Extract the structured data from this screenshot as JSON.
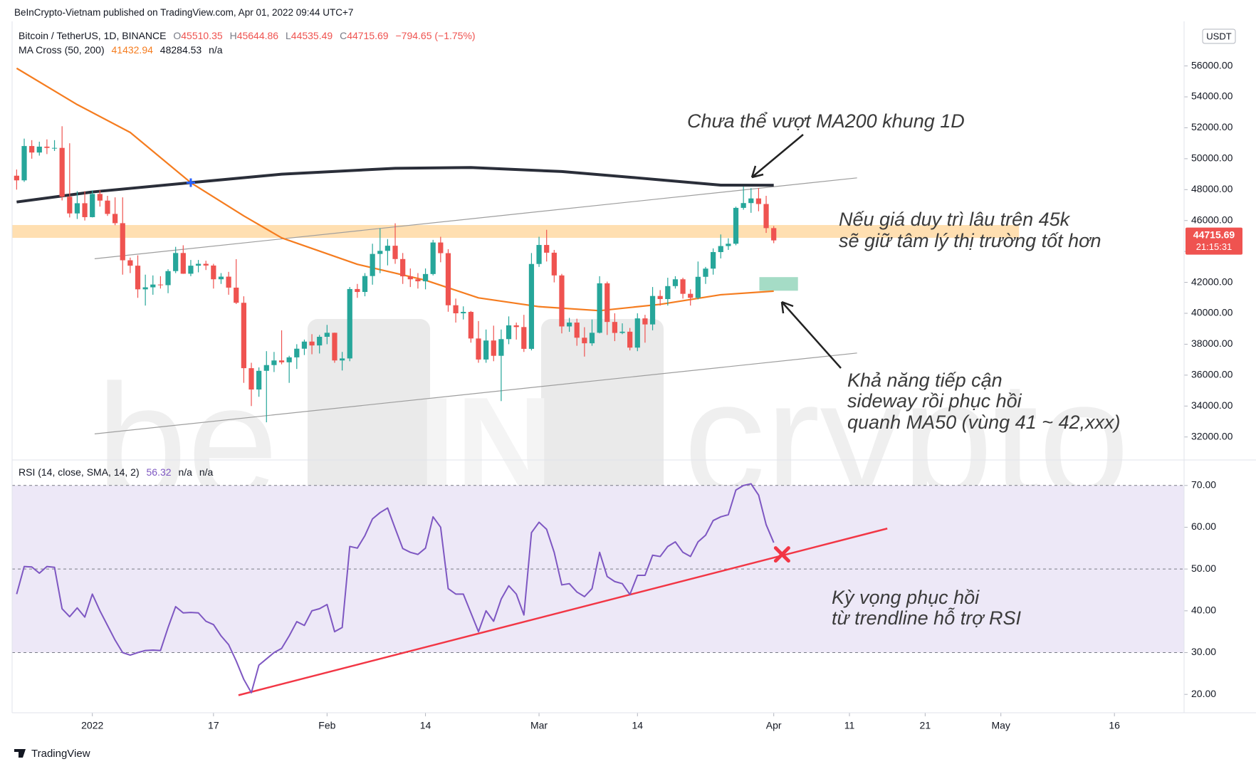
{
  "header": {
    "published": "BeInCrypto-Vietnam published on TradingView.com, Apr 01, 2022 09:44 UTC+7",
    "footer": "TradingView",
    "watermark": [
      "be",
      "IN",
      "crypto"
    ]
  },
  "chart_data": [
    {
      "type": "candlestick",
      "title": "Bitcoin / TetherUS, 1D, BINANCE",
      "ohlc_labels": [
        "O",
        "H",
        "L",
        "C"
      ],
      "change": "−794.65 (−1.75%)",
      "indicator": "MA Cross (50, 200)",
      "na": "n/a",
      "currency": "USDT",
      "countdown": "21:15:31",
      "up_color": "#26a69a",
      "down_color": "#ef5350",
      "x": [
        -10,
        -9,
        -8,
        -7,
        -6,
        -5,
        -4,
        -3,
        -2,
        -1,
        0,
        1,
        2,
        3,
        4,
        5,
        6,
        7,
        8,
        9,
        10,
        11,
        12,
        13,
        14,
        15,
        16,
        17,
        18,
        19,
        20,
        21,
        22,
        23,
        24,
        25,
        26,
        27,
        28,
        29,
        30,
        31,
        32,
        33,
        34,
        35,
        36,
        37,
        38,
        39,
        40,
        41,
        42,
        43,
        44,
        45,
        46,
        47,
        48,
        49,
        50,
        51,
        52,
        53,
        54,
        55,
        56,
        57,
        58,
        59,
        60,
        61,
        62,
        63,
        64,
        65,
        66,
        67,
        68,
        69,
        70,
        71,
        72,
        73,
        74,
        75,
        76,
        77,
        78,
        79,
        80,
        81,
        82,
        83,
        84,
        85,
        86,
        87,
        88,
        89,
        90
      ],
      "open": [
        48900,
        48600,
        50820,
        50400,
        50780,
        50700,
        50700,
        47540,
        46460,
        47120,
        46220,
        47720,
        47290,
        46430,
        45830,
        43430,
        43080,
        41550,
        41680,
        41860,
        41820,
        42730,
        43900,
        42560,
        43080,
        43200,
        43090,
        42200,
        42370,
        41660,
        40680,
        36450,
        35070,
        36280,
        36650,
        36950,
        36830,
        37150,
        37710,
        38170,
        37920,
        38480,
        38740,
        36950,
        37080,
        41570,
        41380,
        42410,
        43840,
        44040,
        44370,
        43510,
        42390,
        42200,
        42070,
        42540,
        44580,
        43890,
        40520,
        40000,
        40090,
        38370,
        37010,
        38240,
        37250,
        38330,
        39220,
        39110,
        37700,
        43190,
        44420,
        43920,
        42450,
        39150,
        39400,
        38420,
        38060,
        38740,
        41940,
        39440,
        38730,
        38810,
        37780,
        39670,
        39280,
        41120,
        40920,
        41760,
        42200,
        41260,
        41000,
        42360,
        42890,
        43960,
        44350,
        44500,
        46820,
        47130,
        47430,
        47070,
        45510.35
      ],
      "high": [
        49300,
        51300,
        51200,
        51100,
        51250,
        51200,
        52100,
        51000,
        47900,
        47900,
        47950,
        47950,
        47600,
        47500,
        47500,
        43600,
        43750,
        42500,
        42450,
        42400,
        42850,
        44300,
        44400,
        43450,
        43450,
        43400,
        43200,
        42600,
        42680,
        43500,
        41100,
        36800,
        36500,
        37550,
        37500,
        38900,
        37250,
        38000,
        38300,
        38650,
        38600,
        39250,
        38750,
        37500,
        41700,
        41900,
        42600,
        44500,
        45500,
        44800,
        45820,
        43900,
        42900,
        42600,
        42900,
        44750,
        44950,
        44150,
        40950,
        40450,
        40150,
        39500,
        38950,
        39200,
        38950,
        39800,
        39400,
        39900,
        43900,
        44950,
        45400,
        44100,
        42550,
        39700,
        39650,
        39100,
        39600,
        42400,
        42050,
        40000,
        39350,
        39050,
        40000,
        39900,
        41700,
        41500,
        42300,
        42400,
        42300,
        41550,
        43350,
        43000,
        44200,
        45100,
        44850,
        46900,
        48190,
        48100,
        48100,
        47600,
        45644.86
      ],
      "low": [
        48000,
        48500,
        50000,
        50200,
        50300,
        50500,
        47300,
        46200,
        46100,
        46000,
        46200,
        46900,
        46300,
        45700,
        42500,
        42600,
        41000,
        40500,
        41200,
        41600,
        41300,
        42600,
        42550,
        42400,
        42650,
        42800,
        41600,
        41900,
        41200,
        40600,
        35500,
        34000,
        34600,
        32950,
        36200,
        36700,
        35500,
        36400,
        37300,
        37350,
        37400,
        38000,
        36800,
        36300,
        36900,
        41000,
        41100,
        41850,
        42600,
        43100,
        43200,
        41900,
        41700,
        41600,
        41550,
        42450,
        43300,
        40100,
        39400,
        39600,
        38100,
        36800,
        36800,
        36900,
        34320,
        38000,
        38300,
        37500,
        37600,
        43000,
        43350,
        42000,
        38700,
        38800,
        37900,
        37200,
        37900,
        38700,
        38600,
        38200,
        38650,
        37600,
        37550,
        38100,
        38900,
        40500,
        40500,
        41600,
        40950,
        40500,
        40900,
        41900,
        42500,
        43550,
        44100,
        44400,
        46700,
        46500,
        46600,
        45200,
        44535.49
      ],
      "close": [
        48600,
        50820,
        50400,
        50780,
        50700,
        50700,
        47540,
        46460,
        47120,
        46220,
        47720,
        47290,
        46430,
        45830,
        43430,
        43080,
        41550,
        41680,
        41860,
        41820,
        42730,
        43900,
        42560,
        43080,
        43200,
        43090,
        42200,
        42370,
        41660,
        40680,
        36450,
        35070,
        36280,
        36650,
        36950,
        36830,
        37150,
        37710,
        38170,
        37920,
        38480,
        38740,
        36950,
        37080,
        41570,
        41380,
        42410,
        43840,
        44040,
        44370,
        43510,
        42390,
        42200,
        42070,
        42540,
        44580,
        43890,
        40520,
        40000,
        40090,
        38370,
        37010,
        38240,
        37250,
        38330,
        39220,
        39110,
        37700,
        43190,
        44420,
        43920,
        42450,
        39150,
        39400,
        38420,
        38060,
        38740,
        41940,
        39440,
        38730,
        38810,
        37780,
        39670,
        39280,
        41120,
        40920,
        41760,
        42200,
        41260,
        41000,
        42360,
        42890,
        43960,
        44350,
        44500,
        46820,
        47130,
        47430,
        47070,
        45510,
        44715.69
      ],
      "lines": [
        {
          "color": "#f57c1f",
          "x": [
            -10,
            -2,
            5,
            13,
            20,
            25,
            35,
            44,
            51,
            59,
            67,
            75,
            83,
            90
          ],
          "values": [
            55850,
            53500,
            51700,
            48450,
            46300,
            44880,
            43170,
            42140,
            41000,
            40430,
            40170,
            40580,
            41200,
            41432.94
          ]
        },
        {
          "color": "#2a2e39",
          "x": [
            -10,
            0,
            13,
            25,
            40,
            50,
            62,
            72,
            83,
            90
          ],
          "values": [
            47200,
            47850,
            48450,
            49000,
            49380,
            49430,
            49170,
            48760,
            48290,
            48284.53
          ]
        }
      ],
      "cross_marker": {
        "x": 13,
        "value": 48450,
        "color": "#2962ff"
      },
      "trendlines": [
        {
          "x": [
            0.3,
            101
          ],
          "values": [
            43530,
            48760
          ]
        },
        {
          "x": [
            0.3,
            101
          ],
          "values": [
            32200,
            37430
          ]
        }
      ],
      "trendline_color": "#9e9e9e",
      "zone": {
        "x": [
          -10.6,
          122.4
        ],
        "values": [
          44880,
          45710
        ],
        "color": "#ffd9a3"
      },
      "box": {
        "x": [
          88.1,
          93.2
        ],
        "values": [
          41460,
          42340
        ],
        "color": "#a5dcc6"
      },
      "annotations": [
        [
          "Chưa thể vượt MA200 khung 1D"
        ],
        [
          "Nếu giá duy trì lâu trên 45k",
          "sẽ giữ tâm lý thị trường tốt hơn"
        ],
        [
          "Khả năng tiếp cận",
          "sideway rồi phục hồi",
          "quanh MA50 (vùng 41 ~ 42,xxx)"
        ]
      ],
      "xlim": [
        -10.6,
        144.2
      ],
      "ylim": [
        30650,
        58700
      ],
      "yticks": [
        {
          "value": 32000,
          "label": "32000.00"
        },
        {
          "value": 34000,
          "label": "34000.00"
        },
        {
          "value": 36000,
          "label": "36000.00"
        },
        {
          "value": 38000,
          "label": "38000.00"
        },
        {
          "value": 40000,
          "label": "40000.00"
        },
        {
          "value": 42000,
          "label": "42000.00"
        },
        {
          "value": 44000,
          "label": "44000.00"
        },
        {
          "value": 46000,
          "label": "46000.00"
        },
        {
          "value": 48000,
          "label": "48000.00"
        },
        {
          "value": 50000,
          "label": "50000.00"
        },
        {
          "value": 52000,
          "label": "52000.00"
        },
        {
          "value": 54000,
          "label": "54000.00"
        },
        {
          "value": 56000,
          "label": "56000.00"
        }
      ]
    },
    {
      "type": "line",
      "title": "RSI (14, close, SMA, 14, 2)",
      "na": [
        "n/a",
        "n/a"
      ],
      "color": "#7e57c2",
      "band_color": "#ede8f7",
      "values": [
        44,
        50.6,
        50.5,
        49,
        50.6,
        50.4,
        40.5,
        38.6,
        40.7,
        38.5,
        44,
        40,
        36.5,
        33,
        30,
        29.4,
        30,
        30.5,
        30.6,
        30.5,
        36,
        41,
        39.5,
        39.6,
        39.5,
        37.5,
        36.7,
        34,
        31.9,
        28,
        23.6,
        20.4,
        27,
        28.5,
        30,
        31,
        34,
        37.4,
        36.5,
        40,
        40.5,
        41.5,
        35,
        36,
        55.4,
        55,
        58,
        62,
        63.5,
        64.6,
        59.7,
        54.9,
        54,
        53.5,
        55,
        62.5,
        60,
        45.3,
        44,
        44,
        39.5,
        35,
        40,
        37.5,
        42.8,
        46,
        44,
        39,
        58.7,
        61.2,
        59.5,
        54,
        46.2,
        46.5,
        44.5,
        43.4,
        45.3,
        54,
        48.2,
        47,
        46.5,
        43.9,
        48.5,
        48.5,
        53.3,
        53,
        55.4,
        56.5,
        54,
        53,
        56.5,
        58.1,
        61.6,
        62.5,
        63,
        68.9,
        70,
        70.4,
        67.7,
        60.6,
        56.32
      ],
      "levels": [
        30,
        50,
        70
      ],
      "trendline": {
        "x": [
          19.3,
          105
        ],
        "values": [
          19.8,
          59.7
        ],
        "color": "#f23645"
      },
      "marker": {
        "x": 91.1,
        "value": 53.5
      },
      "annotations": [
        [
          "Kỳ vọng phục hồi",
          "từ trendline hỗ trợ RSI"
        ]
      ],
      "xlim": [
        -10.6,
        144.2
      ],
      "ylim": [
        15.6,
        76.1
      ],
      "yticks": [
        {
          "value": 20,
          "label": "20.00"
        },
        {
          "value": 30,
          "label": "30.00"
        },
        {
          "value": 40,
          "label": "40.00"
        },
        {
          "value": 50,
          "label": "50.00"
        },
        {
          "value": 60,
          "label": "60.00"
        },
        {
          "value": 70,
          "label": "70.00"
        }
      ],
      "xticks": [
        {
          "value": 0,
          "label": "2022"
        },
        {
          "value": 16,
          "label": "17"
        },
        {
          "value": 31,
          "label": "Feb"
        },
        {
          "value": 44,
          "label": "14"
        },
        {
          "value": 59,
          "label": "Mar"
        },
        {
          "value": 72,
          "label": "14"
        },
        {
          "value": 90,
          "label": "Apr"
        },
        {
          "value": 100,
          "label": "11"
        },
        {
          "value": 110,
          "label": "21"
        },
        {
          "value": 120,
          "label": "May"
        },
        {
          "value": 135,
          "label": "16"
        }
      ]
    }
  ]
}
